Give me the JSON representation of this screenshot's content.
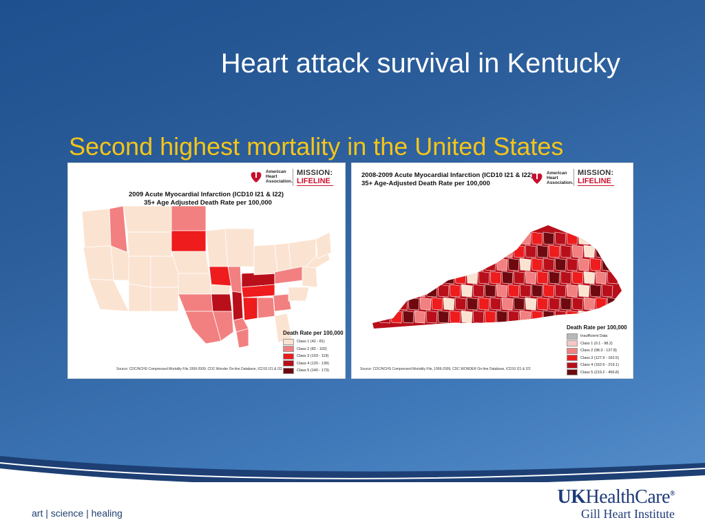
{
  "slide": {
    "title": "Heart attack survival in Kentucky",
    "subtitle": "Second highest mortality in the United States"
  },
  "colors": {
    "class1": "#fbe3d2",
    "class2": "#f28080",
    "class3": "#ee1c1c",
    "class4": "#b80f1a",
    "class5": "#6e0a0f",
    "insufficient": "#b8b8b8",
    "ky_class1": "#f7c6c6",
    "accent_yellow": "#f5c518"
  },
  "us_map": {
    "aha_logo": "American Heart Association.",
    "mission_line1": "MISSION:",
    "mission_line2": "LIFELINE",
    "title_line1": "2009 Acute Myocardial Infarction (ICD10 I21 & I22)",
    "title_line2": "35+ Age Adjusted Death Rate per 100,000",
    "legend_title": "Death Rate per 100,000",
    "legend": [
      {
        "label": "Class 1 (42 - 81)",
        "color": "#fbe3d2"
      },
      {
        "label": "Class 2 (82 - 102)",
        "color": "#f28080"
      },
      {
        "label": "Class 3 (103 - 119)",
        "color": "#ee1c1c"
      },
      {
        "label": "Class 4 (120 - 139)",
        "color": "#b80f1a"
      },
      {
        "label": "Class 5 (140 - 173)",
        "color": "#6e0a0f"
      }
    ],
    "source": "Source: CDC/NCHS Compressed Mortality File 1999-2009, CDC Wonder On-line Database, ICD10 I21 & I22"
  },
  "ky_map": {
    "aha_logo": "American Heart Association.",
    "mission_line1": "MISSION:",
    "mission_line2": "LIFELINE",
    "title_line1": "2008-2009 Acute Myocardial Infarction (ICD10 I21 & I22)",
    "title_line2": "35+ Age-Adjusted Death Rate per 100,000",
    "legend_title": "Death Rate per 100,000",
    "legend": [
      {
        "label": "Insufficient Data",
        "color": "#b8b8b8"
      },
      {
        "label": "Class 1 (0.1 - 98.2)",
        "color": "#f7c6c6"
      },
      {
        "label": "Class 2 (98.3 - 127.8)",
        "color": "#f28080"
      },
      {
        "label": "Class 3 (127.9 - 162.5)",
        "color": "#ee1c1c"
      },
      {
        "label": "Class 4 (162.6 - 219.1)",
        "color": "#b80f1a"
      },
      {
        "label": "Class 5 (219.2 - 456.8)",
        "color": "#6e0a0f"
      }
    ],
    "source": "Source: CDC/NCHS Compressed Mortality File, 1999-2009, CDC WONDER On-line Database, ICD10 I21 & I22"
  },
  "footer": {
    "tagline": "art | science | healing",
    "brand_uk": "UK",
    "brand_hc": "HealthCare",
    "brand_sub": "Gill Heart Institute"
  }
}
